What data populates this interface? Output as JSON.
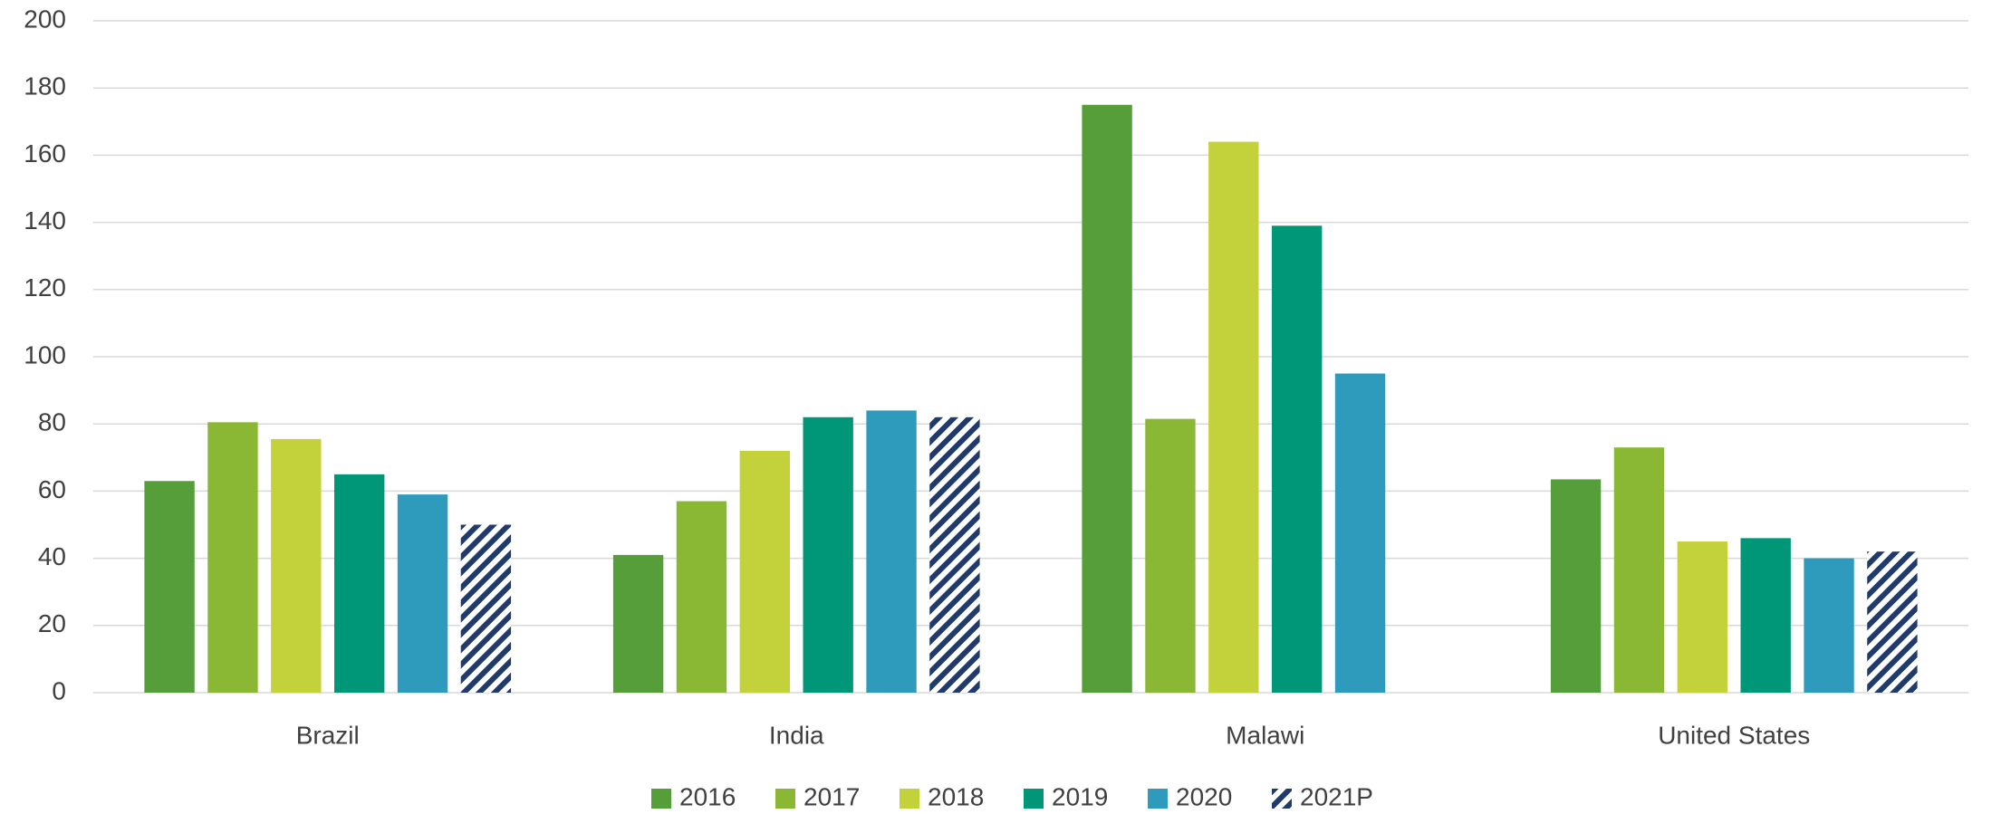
{
  "chart_data": {
    "type": "bar",
    "categories": [
      "Brazil",
      "India",
      "Malawi",
      "United States"
    ],
    "series": [
      {
        "name": "2016",
        "color": "#559e3a",
        "values": [
          63,
          41,
          175,
          63.5
        ]
      },
      {
        "name": "2017",
        "color": "#8ab834",
        "values": [
          80.5,
          57,
          81.5,
          73
        ]
      },
      {
        "name": "2018",
        "color": "#c3d23a",
        "values": [
          75.5,
          72,
          164,
          45
        ]
      },
      {
        "name": "2019",
        "color": "#009678",
        "values": [
          65,
          82,
          139,
          46
        ]
      },
      {
        "name": "2020",
        "color": "#2e9bbd",
        "values": [
          59,
          84,
          95,
          40
        ]
      },
      {
        "name": "2021P",
        "color": "#1f3a6b",
        "hatch": true,
        "values": [
          50,
          82,
          null,
          42
        ]
      }
    ],
    "ylim": [
      0,
      200
    ],
    "yticks": [
      0,
      20,
      40,
      60,
      80,
      100,
      120,
      140,
      160,
      180,
      200
    ],
    "grid": true,
    "legend": "bottom"
  }
}
